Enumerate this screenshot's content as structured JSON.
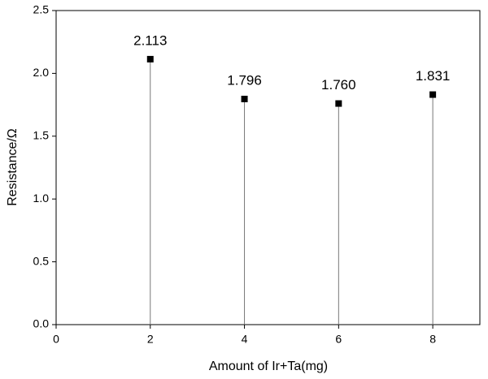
{
  "chart_data": {
    "type": "stem",
    "x": [
      2,
      4,
      6,
      8
    ],
    "values": [
      2.113,
      1.796,
      1.76,
      1.831
    ],
    "value_labels": [
      "2.113",
      "1.796",
      "1.760",
      "1.831"
    ],
    "color": "#000000",
    "xlabel": "Amount of Ir+Ta(mg)",
    "ylabel": "Resistance/Ω",
    "xlim": [
      0,
      9
    ],
    "xticks": [
      0,
      2,
      4,
      6,
      8
    ],
    "ylim": [
      0,
      2.5
    ],
    "yticks": [
      {
        "value": 0,
        "label": "0.0"
      },
      0.5,
      {
        "value": 1,
        "label": "1.0"
      },
      1.5,
      {
        "value": 2,
        "label": "2.0"
      },
      2.5
    ],
    "grid": false
  }
}
